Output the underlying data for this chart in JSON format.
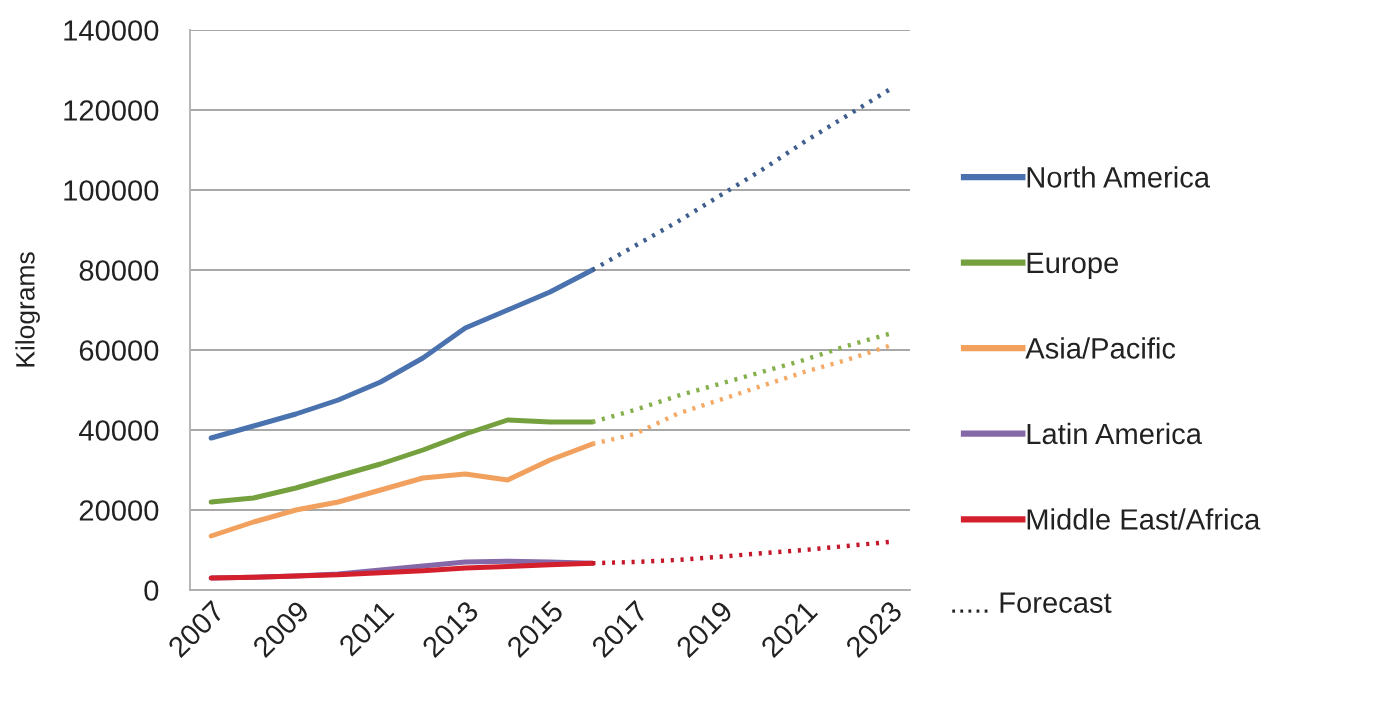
{
  "chart_data": {
    "type": "line",
    "ylabel": "Kilograms",
    "xlim": [
      2006.5,
      2023.5
    ],
    "xticks": [
      2007,
      2009,
      2011,
      2013,
      2015,
      2017,
      2019,
      2021,
      2023
    ],
    "ylim": [
      0,
      140000
    ],
    "yticks": [
      0,
      20000,
      40000,
      60000,
      80000,
      100000,
      120000,
      140000
    ],
    "grid": "y",
    "legend": "right",
    "line_style": "solid",
    "annotations": [
      "..... Forecast"
    ],
    "series": [
      {
        "name": "North America",
        "color": "#4a72ae",
        "x": [
          2007,
          2008,
          2009,
          2010,
          2011,
          2012,
          2013,
          2014,
          2015,
          2016
        ],
        "values": [
          38000,
          41000,
          44000,
          47500,
          52000,
          58000,
          65500,
          70000,
          74500,
          80000
        ]
      },
      {
        "name": "Europe",
        "color": "#74a03e",
        "x": [
          2007,
          2008,
          2009,
          2010,
          2011,
          2012,
          2013,
          2014,
          2015,
          2016
        ],
        "values": [
          22000,
          23000,
          25500,
          28500,
          31500,
          35000,
          39000,
          42500,
          42000,
          42000
        ]
      },
      {
        "name": "Asia/Pacific",
        "color": "#f2a05e",
        "x": [
          2007,
          2008,
          2009,
          2010,
          2011,
          2012,
          2013,
          2014,
          2015,
          2016
        ],
        "values": [
          13500,
          17000,
          20000,
          22000,
          25000,
          28000,
          29000,
          27500,
          32500,
          36500
        ]
      },
      {
        "name": "Latin America",
        "color": "#8468a8",
        "x": [
          2007,
          2008,
          2009,
          2010,
          2011,
          2012,
          2013,
          2014,
          2015,
          2016
        ],
        "values": [
          3000,
          3200,
          3500,
          4000,
          5000,
          6000,
          7000,
          7200,
          7000,
          6700
        ]
      },
      {
        "name": "Middle East/Africa",
        "color": "#d41f2c",
        "x": [
          2007,
          2008,
          2009,
          2010,
          2011,
          2012,
          2013,
          2014,
          2015,
          2016
        ],
        "values": [
          3000,
          3200,
          3500,
          3800,
          4300,
          4800,
          5500,
          5900,
          6300,
          6700
        ]
      },
      {
        "color": "#3f5f8f",
        "line_style": "dotted",
        "x": [
          2016,
          2017,
          2018,
          2019,
          2020,
          2021,
          2022,
          2023
        ],
        "values": [
          80000,
          86000,
          92000,
          98500,
          105000,
          112000,
          118500,
          125000
        ]
      },
      {
        "color": "#86b04c",
        "line_style": "dotted",
        "x": [
          2016,
          2017,
          2018,
          2019,
          2020,
          2021,
          2022,
          2023
        ],
        "values": [
          42000,
          45000,
          48500,
          51500,
          54500,
          57500,
          61000,
          64000
        ]
      },
      {
        "color": "#f4aa66",
        "line_style": "dotted",
        "x": [
          2016,
          2017,
          2018,
          2019,
          2020,
          2021,
          2022,
          2023
        ],
        "values": [
          36500,
          39000,
          44000,
          47500,
          51000,
          54500,
          57500,
          61000
        ]
      },
      {
        "color": "#c4182a",
        "line_style": "dotted",
        "x": [
          2016,
          2017,
          2018,
          2019,
          2020,
          2021,
          2022,
          2023
        ],
        "values": [
          6700,
          7000,
          7500,
          8300,
          9200,
          10000,
          11000,
          12000
        ]
      }
    ]
  }
}
